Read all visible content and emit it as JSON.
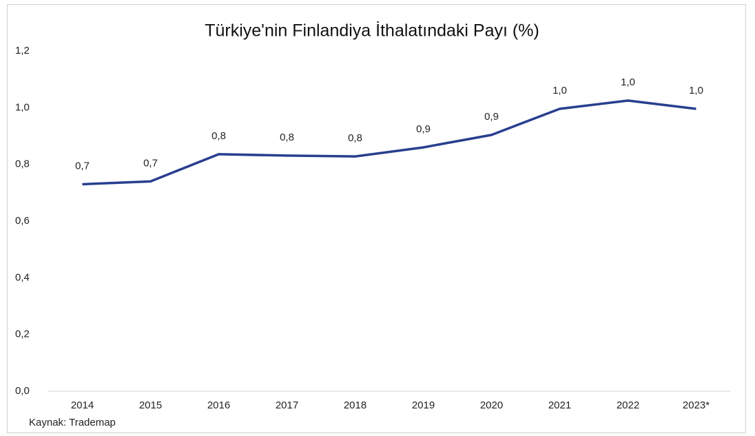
{
  "chart_data": {
    "type": "line",
    "title": "Türkiye'nin Finlandiya İthalatındaki Payı (%)",
    "source": "Kaynak: Trademap",
    "categories": [
      "2014",
      "2015",
      "2016",
      "2017",
      "2018",
      "2019",
      "2020",
      "2021",
      "2022",
      "2023*"
    ],
    "series": [
      {
        "name": "Pay",
        "color": "#283e8f",
        "values": [
          0.73,
          0.74,
          0.836,
          0.831,
          0.828,
          0.86,
          0.904,
          0.996,
          1.025,
          0.996
        ],
        "value_labels": [
          "0,7",
          "0,7",
          "0,8",
          "0,8",
          "0,8",
          "0,9",
          "0,9",
          "1,0",
          "1,0",
          "1,0"
        ]
      }
    ],
    "ylim": [
      0,
      1.2
    ],
    "yticks": [
      {
        "value": 0,
        "label": "0,0"
      },
      {
        "value": 0.2,
        "label": "0,2"
      },
      {
        "value": 0.4,
        "label": "0,4"
      },
      {
        "value": 0.6,
        "label": "0,6"
      },
      {
        "value": 0.8,
        "label": "0,8"
      },
      {
        "value": 1.0,
        "label": "1,0"
      },
      {
        "value": 1.2,
        "label": "1,2"
      }
    ],
    "grid": false
  }
}
